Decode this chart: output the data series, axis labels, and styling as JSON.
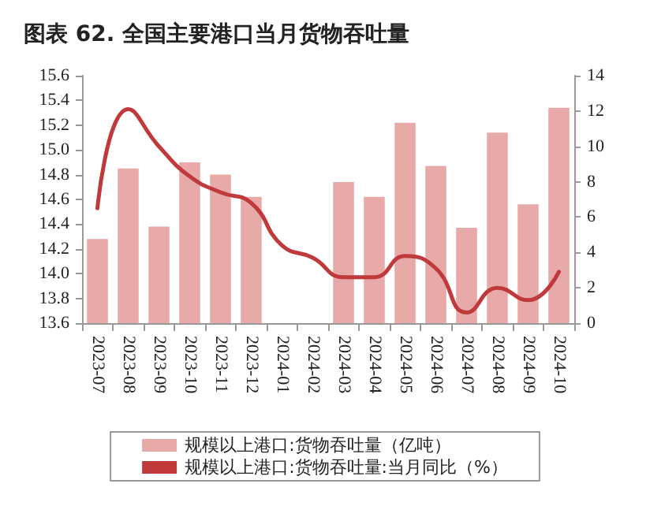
{
  "chart_data": {
    "type": "bar",
    "title": "图表 62. 全国主要港口当月货物吞吐量",
    "categories": [
      "2023-07",
      "2023-08",
      "2023-09",
      "2023-10",
      "2023-11",
      "2023-12",
      "2024-01",
      "2024-02",
      "2024-03",
      "2024-04",
      "2024-05",
      "2024-06",
      "2024-07",
      "2024-08",
      "2024-09",
      "2024-10"
    ],
    "series": [
      {
        "name": "规模以上港口:货物吞吐量（亿吨）",
        "color": "#e8a9a9",
        "values": [
          14.28,
          14.85,
          14.38,
          14.9,
          14.8,
          14.62,
          null,
          null,
          14.74,
          14.62,
          15.22,
          14.87,
          14.37,
          15.14,
          14.56,
          15.34
        ]
      },
      {
        "name": "规模以上港口:货物吞吐量:当月同比（%）",
        "type": "line",
        "axis": "y2",
        "color": "#c0393b",
        "values": [
          6.5,
          12.1,
          10.0,
          8.3,
          7.4,
          6.8,
          4.4,
          3.7,
          2.6,
          2.6,
          3.8,
          3.1,
          0.6,
          2.0,
          1.3,
          2.9
        ]
      }
    ],
    "ylim": [
      13.6,
      15.6
    ],
    "yticks": [
      13.6,
      13.8,
      {
        "value": 14,
        "label": "14.0"
      },
      14.2,
      14.4,
      14.6,
      14.8,
      {
        "value": 15,
        "label": "15.0"
      },
      15.2,
      15.4,
      15.6
    ],
    "y2lim": [
      0,
      14
    ],
    "y2ticks": [
      0,
      2,
      4,
      6,
      8,
      10,
      12,
      14
    ],
    "grid": false,
    "legend": "bottom",
    "marker": "none",
    "line_style": "solid"
  }
}
